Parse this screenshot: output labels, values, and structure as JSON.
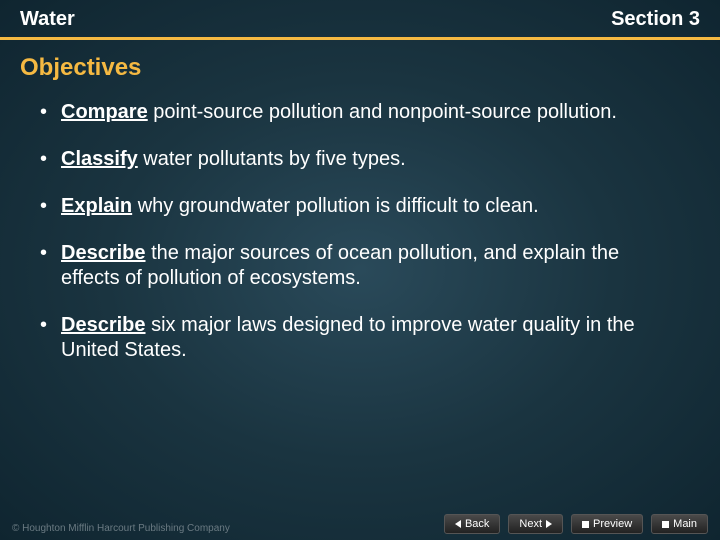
{
  "header": {
    "left": "Water",
    "right": "Section 3"
  },
  "title": "Objectives",
  "bullets": [
    {
      "keyword": "Compare",
      "rest": " point-source pollution and nonpoint-source pollution."
    },
    {
      "keyword": "Classify",
      "rest": " water pollutants by five types."
    },
    {
      "keyword": "Explain",
      "rest": " why groundwater pollution is difficult to clean."
    },
    {
      "keyword": "Describe",
      "rest": " the major sources of ocean pollution, and explain the effects of pollution of ecosystems."
    },
    {
      "keyword": "Describe",
      "rest": " six major laws designed to improve water quality in the United States."
    }
  ],
  "nav": {
    "back": "Back",
    "next": "Next",
    "preview": "Preview",
    "main": "Main"
  },
  "copyright": "© Houghton Mifflin Harcourt Publishing Company",
  "colors": {
    "accent": "#f5b942",
    "text": "#ffffff",
    "bg_inner": "#2a4a5a",
    "bg_outer": "#0f2530"
  }
}
